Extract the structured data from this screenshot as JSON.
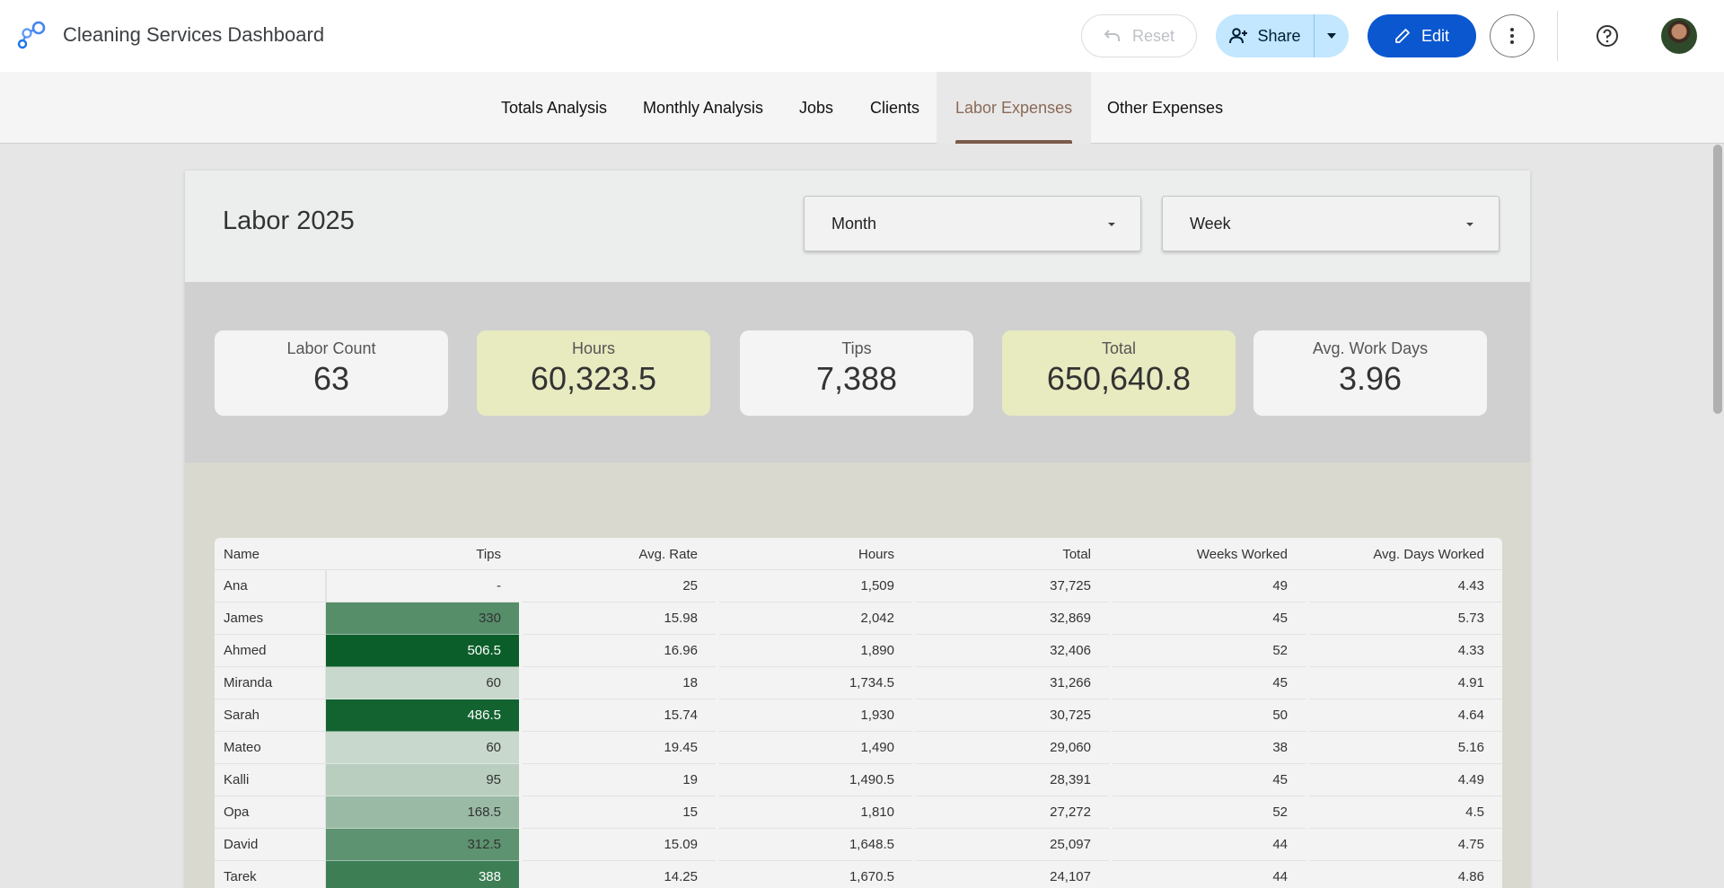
{
  "app": {
    "title": "Cleaning Services Dashboard"
  },
  "toolbar": {
    "reset_label": "Reset",
    "share_label": "Share",
    "edit_label": "Edit",
    "accent": "#0b57d0",
    "share_bg": "#c2e7ff"
  },
  "nav": {
    "tabs": [
      {
        "label": "Totals Analysis"
      },
      {
        "label": "Monthly Analysis"
      },
      {
        "label": "Jobs"
      },
      {
        "label": "Clients"
      },
      {
        "label": "Labor Expenses",
        "active": true
      },
      {
        "label": "Other Expenses"
      }
    ]
  },
  "report": {
    "title": "Labor 2025",
    "filters": {
      "month": "Month",
      "week": "Week"
    },
    "kpis": [
      {
        "label": "Labor Count",
        "value": "63"
      },
      {
        "label": "Hours",
        "value": "60,323.5"
      },
      {
        "label": "Tips",
        "value": "7,388"
      },
      {
        "label": "Total",
        "value": "650,640.8"
      },
      {
        "label": "Avg. Work Days",
        "value": "3.96"
      }
    ],
    "table": {
      "columns": [
        "Name",
        "Tips",
        "Avg. Rate",
        "Hours",
        "Total",
        "Weeks Worked",
        "Avg. Days Worked"
      ],
      "tips_max": 506.5,
      "heat_color": "#0b5e2a",
      "rows": [
        {
          "name": "Ana",
          "tips": "-",
          "tips_num": 0,
          "avg_rate": "25",
          "hours": "1,509",
          "total": "37,725",
          "weeks": "49",
          "avg_days": "4.43"
        },
        {
          "name": "James",
          "tips": "330",
          "tips_num": 330,
          "avg_rate": "15.98",
          "hours": "2,042",
          "total": "32,869",
          "weeks": "45",
          "avg_days": "5.73"
        },
        {
          "name": "Ahmed",
          "tips": "506.5",
          "tips_num": 506.5,
          "avg_rate": "16.96",
          "hours": "1,890",
          "total": "32,406",
          "weeks": "52",
          "avg_days": "4.33"
        },
        {
          "name": "Miranda",
          "tips": "60",
          "tips_num": 60,
          "avg_rate": "18",
          "hours": "1,734.5",
          "total": "31,266",
          "weeks": "45",
          "avg_days": "4.91"
        },
        {
          "name": "Sarah",
          "tips": "486.5",
          "tips_num": 486.5,
          "avg_rate": "15.74",
          "hours": "1,930",
          "total": "30,725",
          "weeks": "50",
          "avg_days": "4.64"
        },
        {
          "name": "Mateo",
          "tips": "60",
          "tips_num": 60,
          "avg_rate": "19.45",
          "hours": "1,490",
          "total": "29,060",
          "weeks": "38",
          "avg_days": "5.16"
        },
        {
          "name": "Kalli",
          "tips": "95",
          "tips_num": 95,
          "avg_rate": "19",
          "hours": "1,490.5",
          "total": "28,391",
          "weeks": "45",
          "avg_days": "4.49"
        },
        {
          "name": "Opa",
          "tips": "168.5",
          "tips_num": 168.5,
          "avg_rate": "15",
          "hours": "1,810",
          "total": "27,272",
          "weeks": "52",
          "avg_days": "4.5"
        },
        {
          "name": "David",
          "tips": "312.5",
          "tips_num": 312.5,
          "avg_rate": "15.09",
          "hours": "1,648.5",
          "total": "25,097",
          "weeks": "44",
          "avg_days": "4.75"
        },
        {
          "name": "Tarek",
          "tips": "388",
          "tips_num": 388,
          "avg_rate": "14.25",
          "hours": "1,670.5",
          "total": "24,107",
          "weeks": "44",
          "avg_days": "4.86"
        }
      ]
    }
  }
}
